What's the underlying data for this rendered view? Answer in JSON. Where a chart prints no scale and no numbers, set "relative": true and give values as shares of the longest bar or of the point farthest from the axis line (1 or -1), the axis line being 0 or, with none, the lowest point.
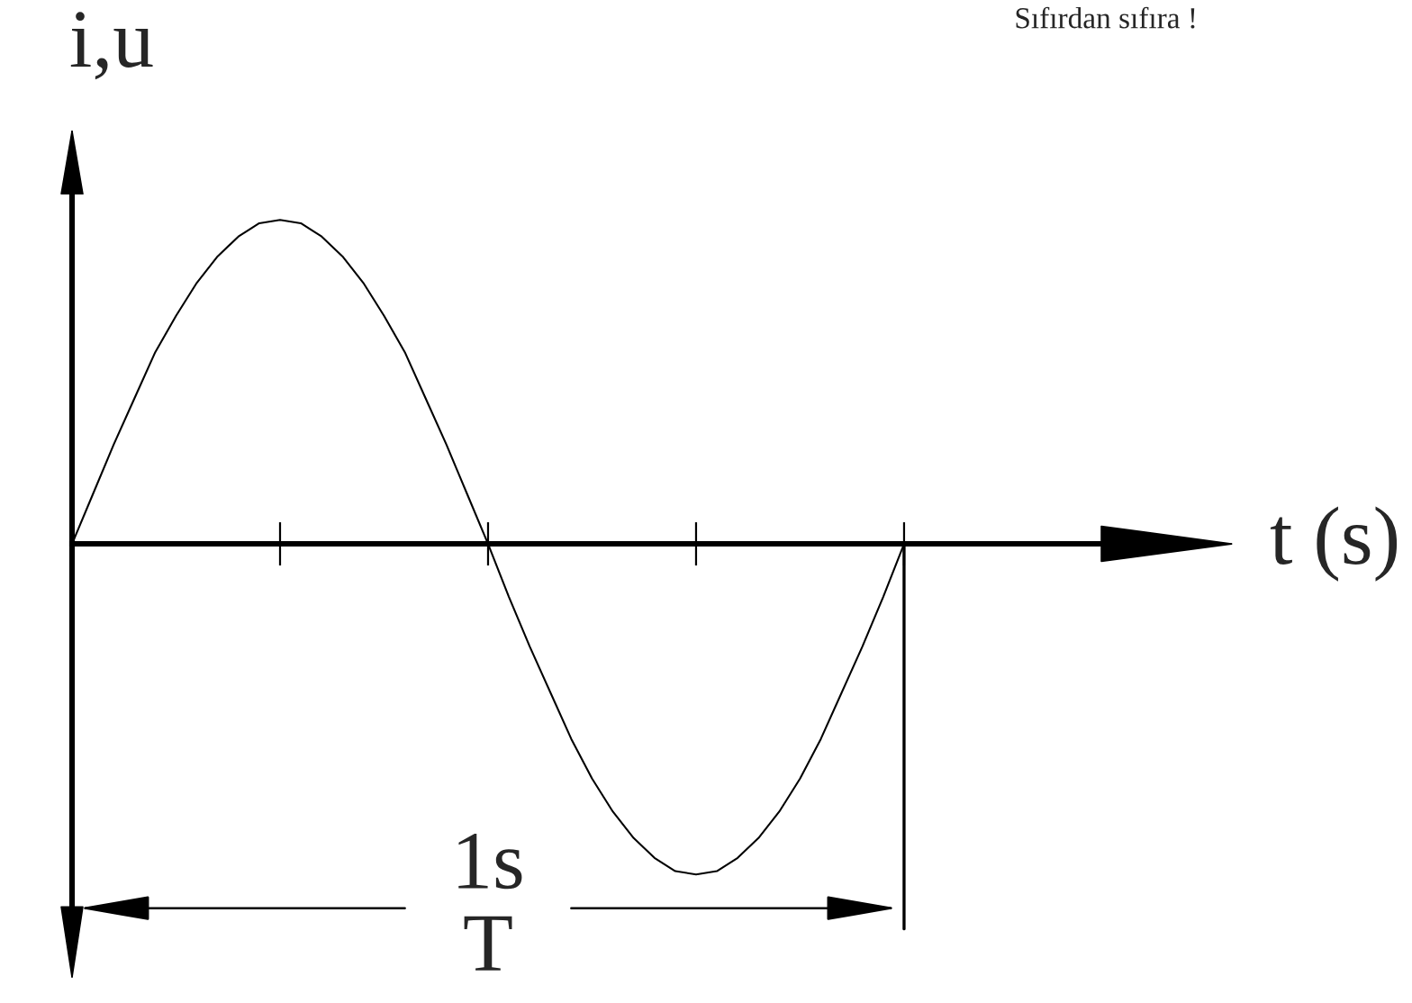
{
  "chart_data": {
    "type": "line",
    "relative": true,
    "xlabel": "t (s)",
    "ylabel": "i,u",
    "categories": [
      null,
      null,
      null,
      null,
      null,
      null,
      null,
      null,
      null,
      null,
      null,
      null,
      null,
      null,
      null,
      null,
      null,
      null,
      null,
      null,
      null,
      null,
      null,
      null,
      null,
      null,
      null,
      null,
      null,
      null,
      null,
      null,
      null,
      null,
      null,
      null,
      null,
      null,
      null,
      null,
      null
    ],
    "series": [
      {
        "color": "#000000",
        "values": [
          0,
          0.15,
          0.3,
          0.44,
          0.58,
          0.69,
          0.79,
          0.87,
          0.93,
          0.97,
          0.98,
          0.97,
          0.93,
          0.87,
          0.79,
          0.69,
          0.58,
          0.44,
          0.3,
          0.15,
          0,
          -0.16,
          -0.31,
          -0.45,
          -0.59,
          -0.71,
          -0.81,
          -0.89,
          -0.95,
          -0.99,
          -1,
          -0.99,
          -0.95,
          -0.89,
          -0.81,
          -0.71,
          -0.59,
          -0.45,
          -0.31,
          -0.16,
          0
        ]
      }
    ],
    "annotations": [
      "Sıfırdan sıfıra !",
      "1s",
      "T"
    ]
  }
}
